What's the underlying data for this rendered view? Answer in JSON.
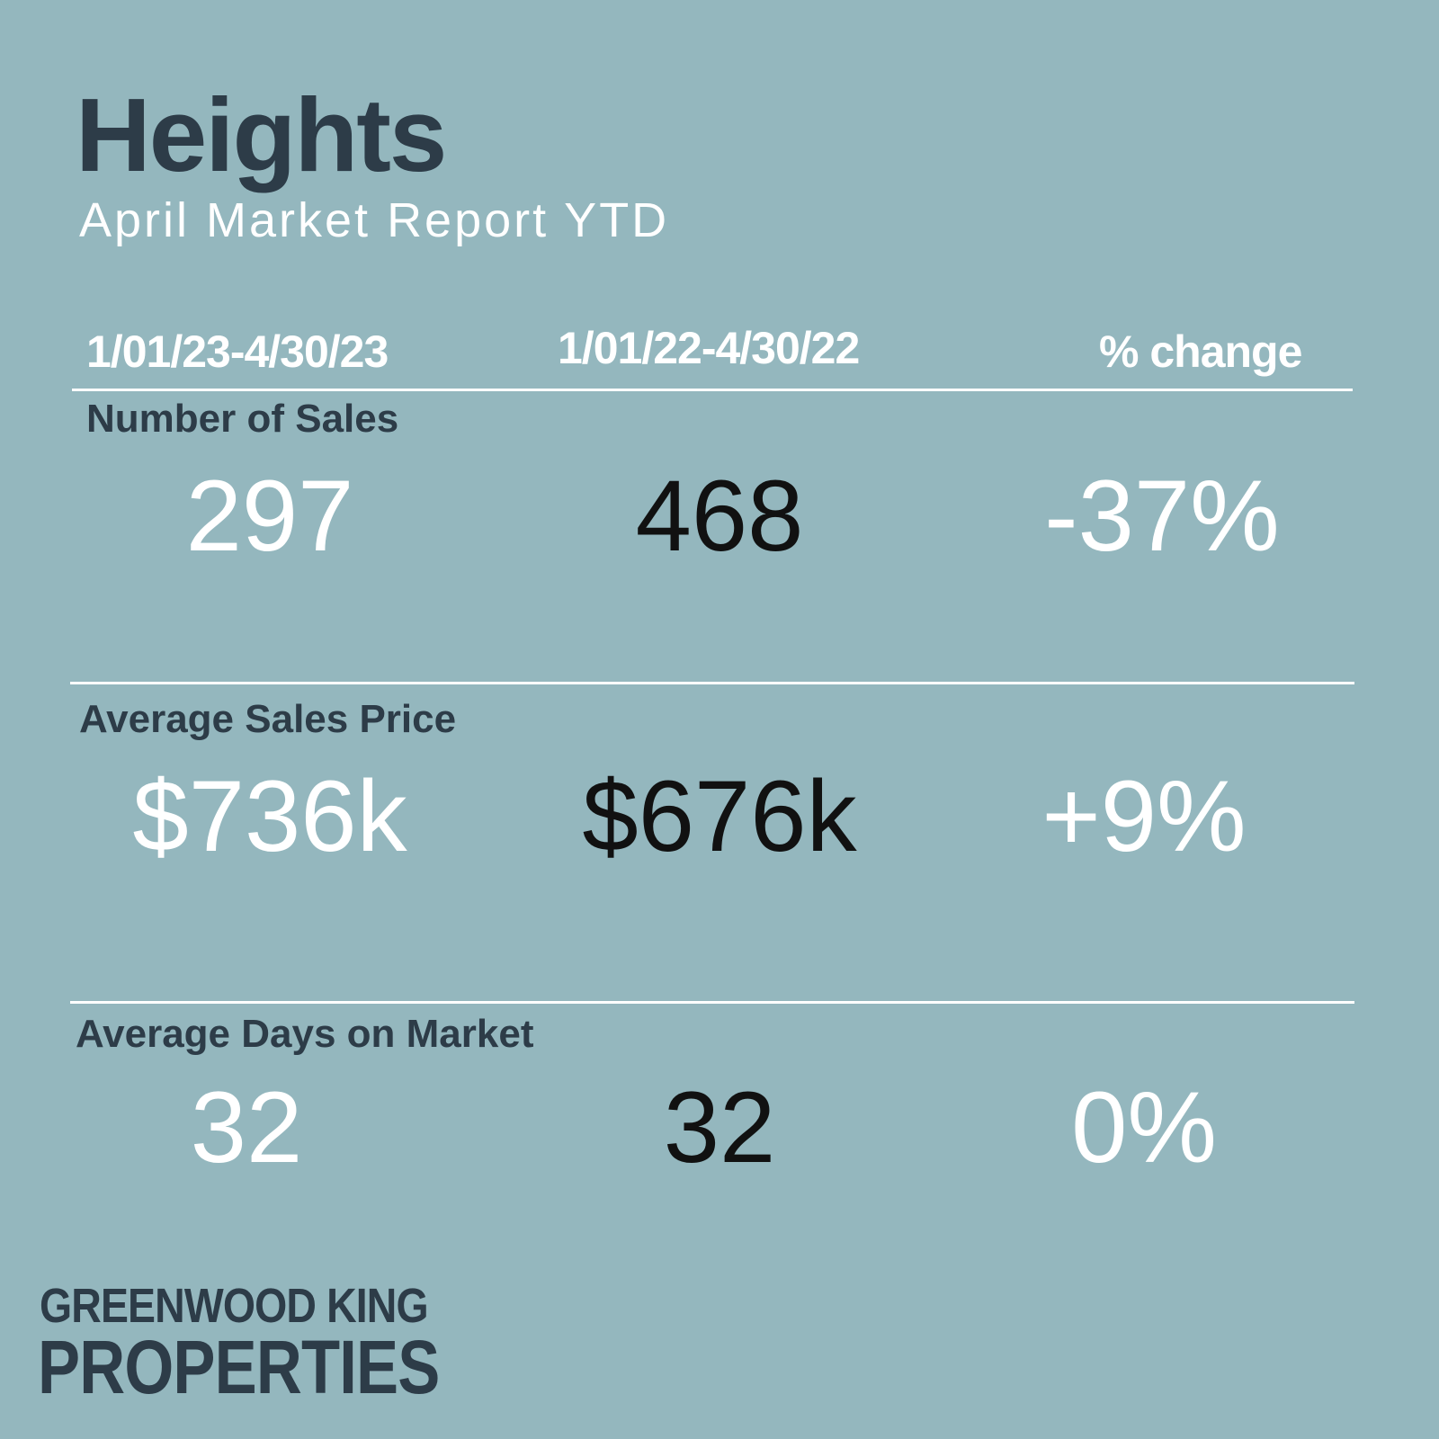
{
  "header": {
    "title": "Heights",
    "subtitle": "April Market Report YTD"
  },
  "columns": [
    "1/01/23-4/30/23",
    "1/01/22-4/30/22",
    "% change"
  ],
  "rows": [
    {
      "label": "Number of Sales",
      "current": "297",
      "previous": "468",
      "change": "-37%"
    },
    {
      "label": "Average Sales Price",
      "current": "$736k",
      "previous": "$676k",
      "change": "+9%"
    },
    {
      "label": "Average Days on Market",
      "current": "32",
      "previous": "32",
      "change": "0%"
    }
  ],
  "logo": {
    "line1": "GREENWOOD KING",
    "line2": "PROPERTIES"
  },
  "colors": {
    "background": "#94b7be",
    "heading": "#2d3c48",
    "current_value": "#ffffff",
    "previous_value": "#111111",
    "change_value": "#ffffff"
  }
}
